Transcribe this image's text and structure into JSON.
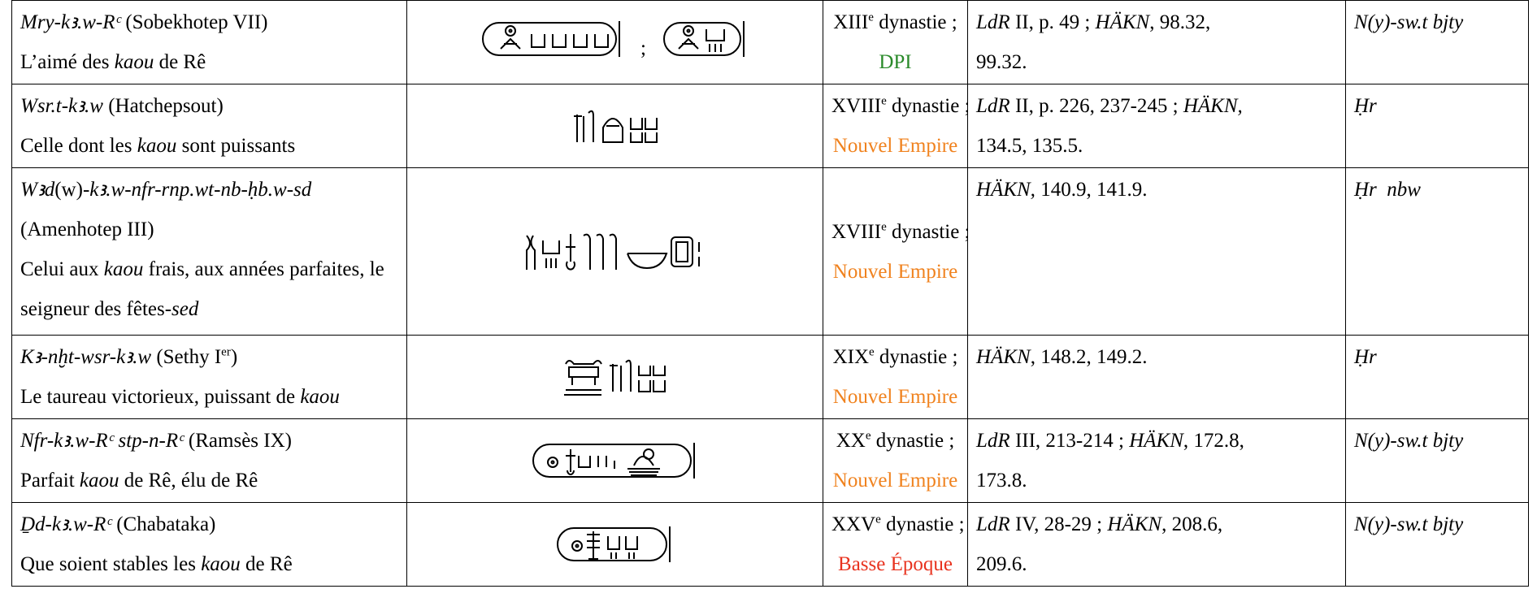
{
  "table": {
    "rows": [
      {
        "name": [
          [
            {
              "text": "Mry-kꜣ.w-Rᶜ",
              "style": "italic"
            },
            {
              "text": " (Sobekhotep VII)"
            }
          ],
          [
            {
              "text": "L’aimé des "
            },
            {
              "text": "kaou",
              "style": "italic"
            },
            {
              "text": " de Rê"
            }
          ]
        ],
        "separator": ";",
        "dynasty": [
          {
            "text": "XIII"
          },
          {
            "text": "e",
            "style": "sup"
          },
          {
            "text": " dynastie ;"
          }
        ],
        "period": {
          "text": "DPI",
          "color": "#2a8a2a"
        },
        "refs": [
          [
            {
              "text": "LdR",
              "style": "italic"
            },
            {
              "text": " II, p. 49 ; "
            },
            {
              "text": "HÄKN",
              "style": "italic"
            },
            {
              "text": ", 98.32,"
            }
          ],
          [
            {
              "text": "99.32."
            }
          ]
        ],
        "title": [
          {
            "text": "N(y)-sw.t bjty",
            "style": "italic"
          }
        ]
      },
      {
        "name": [
          [
            {
              "text": "Wsr.t-kꜣ.w",
              "style": "italic"
            },
            {
              "text": " (Hatchepsout)"
            }
          ],
          [
            {
              "text": "Celle dont les "
            },
            {
              "text": "kaou",
              "style": "italic"
            },
            {
              "text": " sont puissants"
            }
          ]
        ],
        "dynasty": [
          {
            "text": "XVIII"
          },
          {
            "text": "e",
            "style": "sup"
          },
          {
            "text": " dynastie ;"
          }
        ],
        "period": {
          "text": "Nouvel Empire",
          "color": "#f0821e"
        },
        "refs": [
          [
            {
              "text": "LdR",
              "style": "italic"
            },
            {
              "text": " II, p. 226, 237-245 ; "
            },
            {
              "text": "HÄKN,",
              "style": "italic"
            }
          ],
          [
            {
              "text": "134.5, 135.5."
            }
          ]
        ],
        "title": [
          {
            "text": "Ḥr",
            "style": "italic"
          }
        ]
      },
      {
        "name": [
          [
            {
              "text": "Wꜣd",
              "style": "italic"
            },
            {
              "text": "(w)"
            },
            {
              "text": "-kꜣ.w-nfr-rnp.wt-nb-ḥb.w-sd",
              "style": "italic"
            }
          ],
          [
            {
              "text": "(Amenhotep III)"
            }
          ],
          [
            {
              "text": "Celui aux "
            },
            {
              "text": "kaou",
              "style": "italic"
            },
            {
              "text": " frais, aux années parfaites, le"
            }
          ],
          [
            {
              "text": "seigneur des fêtes-"
            },
            {
              "text": "sed",
              "style": "italic"
            }
          ]
        ],
        "dynasty": [
          {
            "text": "XVIII"
          },
          {
            "text": "e",
            "style": "sup"
          },
          {
            "text": " dynastie ;"
          }
        ],
        "period": {
          "text": "Nouvel Empire",
          "color": "#f0821e"
        },
        "refs": [
          [
            {
              "text": "HÄKN,",
              "style": "italic"
            },
            {
              "text": " 140.9, 141.9."
            }
          ]
        ],
        "title": [
          {
            "text": "Ḥr  nbw",
            "style": "italic"
          }
        ]
      },
      {
        "name": [
          [
            {
              "text": "Kꜣ-nḫt-wsr-kꜣ.w",
              "style": "italic"
            },
            {
              "text": " (Sethy I"
            },
            {
              "text": "er",
              "style": "sup"
            },
            {
              "text": ")"
            }
          ],
          [
            {
              "text": "Le taureau victorieux, puissant de "
            },
            {
              "text": "kaou",
              "style": "italic"
            }
          ]
        ],
        "dynasty": [
          {
            "text": "XIX"
          },
          {
            "text": "e",
            "style": "sup"
          },
          {
            "text": " dynastie ;"
          }
        ],
        "period": {
          "text": "Nouvel Empire",
          "color": "#f0821e"
        },
        "refs": [
          [
            {
              "text": "HÄKN",
              "style": "italic"
            },
            {
              "text": ", 148.2, 149.2."
            }
          ]
        ],
        "title": [
          {
            "text": "Ḥr",
            "style": "italic"
          }
        ]
      },
      {
        "name": [
          [
            {
              "text": "Nfr-kꜣ.w-Rᶜ stp-n-Rᶜ",
              "style": "italic"
            },
            {
              "text": " (Ramsès IX)"
            }
          ],
          [
            {
              "text": "Parfait "
            },
            {
              "text": "kaou",
              "style": "italic"
            },
            {
              "text": " de Rê, élu de Rê"
            }
          ]
        ],
        "dynasty": [
          {
            "text": "XX"
          },
          {
            "text": "e",
            "style": "sup"
          },
          {
            "text": " dynastie ;"
          }
        ],
        "period": {
          "text": "Nouvel Empire",
          "color": "#f0821e"
        },
        "refs": [
          [
            {
              "text": "LdR",
              "style": "italic"
            },
            {
              "text": " III, 213-214 ; "
            },
            {
              "text": "HÄKN",
              "style": "italic"
            },
            {
              "text": ", 172.8,"
            }
          ],
          [
            {
              "text": "173.8."
            }
          ]
        ],
        "title": [
          {
            "text": "N(y)-sw.t bjty",
            "style": "italic"
          }
        ]
      },
      {
        "name": [
          [
            {
              "text": "Ḏd-kꜣ.w-Rᶜ",
              "style": "italic"
            },
            {
              "text": " (Chabataka)"
            }
          ],
          [
            {
              "text": "Que soient stables les "
            },
            {
              "text": "kaou",
              "style": "italic"
            },
            {
              "text": " de Rê"
            }
          ]
        ],
        "dynasty": [
          {
            "text": "XXV"
          },
          {
            "text": "e",
            "style": "sup"
          },
          {
            "text": " dynastie ;"
          }
        ],
        "period": {
          "text": "Basse Époque",
          "color": "#e8321e"
        },
        "refs": [
          [
            {
              "text": "LdR",
              "style": "italic"
            },
            {
              "text": " IV, 28-29 ; "
            },
            {
              "text": "HÄKN",
              "style": "italic"
            },
            {
              "text": ", 208.6,"
            }
          ],
          [
            {
              "text": "209.6."
            }
          ]
        ],
        "title": [
          {
            "text": "N(y)-sw.t bjty",
            "style": "italic"
          }
        ]
      }
    ]
  }
}
